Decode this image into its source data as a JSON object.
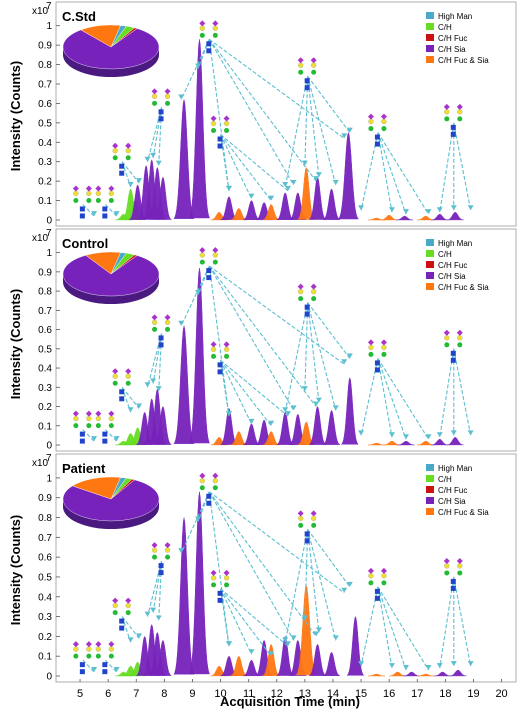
{
  "figure": {
    "y_axis_title": "Intensity (Counts)",
    "x_axis_title": "Acquisition Time (min)",
    "y_multiplier_base": "x10",
    "y_multiplier_exp": "7"
  },
  "colors": {
    "High Man": "#4aa8c8",
    "C/H": "#66dd22",
    "C/H Fuc": "#cc1111",
    "C/H Sia": "#7722bb",
    "C/H Fuc & Sia": "#ff7711",
    "arrow": "#5bbfd0"
  },
  "legend": [
    "High Man",
    "C/H",
    "C/H Fuc",
    "C/H Sia",
    "C/H Fuc & Sia"
  ],
  "chart_data": [
    {
      "type": "area",
      "title": "C.Std",
      "xlabel": "Acquisition Time (min)",
      "ylabel": "Intensity (Counts)",
      "xlim": [
        4.5,
        20.3
      ],
      "ylim": [
        0,
        1.05
      ],
      "y_unit_multiplier": "x10^7",
      "x_ticks": [],
      "y_ticks": [
        0,
        0.1,
        0.2,
        0.3,
        0.4,
        0.5,
        0.6,
        0.7,
        0.8,
        0.9,
        1
      ],
      "peaks": [
        {
          "rt": 6.55,
          "height": 0.03,
          "class": "C/H"
        },
        {
          "rt": 6.8,
          "height": 0.16,
          "class": "C/H"
        },
        {
          "rt": 6.95,
          "height": 0.1,
          "class": "C/H"
        },
        {
          "rt": 7.05,
          "height": 0.18,
          "class": "C/H Sia"
        },
        {
          "rt": 7.35,
          "height": 0.28,
          "class": "C/H Sia"
        },
        {
          "rt": 7.55,
          "height": 0.31,
          "class": "C/H Sia"
        },
        {
          "rt": 7.75,
          "height": 0.27,
          "class": "C/H Sia"
        },
        {
          "rt": 7.95,
          "height": 0.22,
          "class": "C/H Sia"
        },
        {
          "rt": 8.7,
          "height": 0.62,
          "class": "C/H Sia"
        },
        {
          "rt": 9.25,
          "height": 0.93,
          "class": "C/H Sia"
        },
        {
          "rt": 9.95,
          "height": 0.04,
          "class": "C/H Fuc & Sia"
        },
        {
          "rt": 10.3,
          "height": 0.12,
          "class": "C/H Sia"
        },
        {
          "rt": 10.65,
          "height": 0.06,
          "class": "C/H Fuc & Sia"
        },
        {
          "rt": 11.1,
          "height": 0.1,
          "class": "C/H Sia"
        },
        {
          "rt": 11.55,
          "height": 0.09,
          "class": "C/H Sia"
        },
        {
          "rt": 11.8,
          "height": 0.08,
          "class": "C/H Fuc & Sia"
        },
        {
          "rt": 12.3,
          "height": 0.14,
          "class": "C/H Sia"
        },
        {
          "rt": 12.75,
          "height": 0.14,
          "class": "C/H Sia"
        },
        {
          "rt": 13.05,
          "height": 0.27,
          "class": "C/H Fuc & Sia"
        },
        {
          "rt": 13.45,
          "height": 0.22,
          "class": "C/H Sia"
        },
        {
          "rt": 13.95,
          "height": 0.16,
          "class": "C/H Sia"
        },
        {
          "rt": 14.55,
          "height": 0.45,
          "class": "C/H Sia"
        },
        {
          "rt": 15.55,
          "height": 0.01,
          "class": "C/H Fuc & Sia"
        },
        {
          "rt": 16.0,
          "height": 0.025,
          "class": "C/H Fuc & Sia"
        },
        {
          "rt": 16.55,
          "height": 0.02,
          "class": "C/H Sia"
        },
        {
          "rt": 17.3,
          "height": 0.02,
          "class": "C/H Fuc & Sia"
        },
        {
          "rt": 17.8,
          "height": 0.03,
          "class": "C/H Sia"
        },
        {
          "rt": 18.35,
          "height": 0.04,
          "class": "C/H Sia"
        }
      ],
      "pie": [
        {
          "class": "High Man",
          "value": 0.02
        },
        {
          "class": "C/H",
          "value": 0.03
        },
        {
          "class": "C/H Fuc",
          "value": 0.01
        },
        {
          "class": "C/H Sia",
          "value": 0.8
        },
        {
          "class": "C/H Fuc & Sia",
          "value": 0.14
        }
      ]
    },
    {
      "type": "area",
      "title": "Control",
      "xlabel": "Acquisition Time (min)",
      "ylabel": "Intensity (Counts)",
      "xlim": [
        4.5,
        20.3
      ],
      "ylim": [
        0,
        1.05
      ],
      "y_unit_multiplier": "x10^7",
      "x_ticks": [],
      "y_ticks": [
        0,
        0.1,
        0.2,
        0.3,
        0.4,
        0.5,
        0.6,
        0.7,
        0.8,
        0.9,
        1
      ],
      "peaks": [
        {
          "rt": 6.55,
          "height": 0.02,
          "class": "C/H"
        },
        {
          "rt": 6.8,
          "height": 0.06,
          "class": "C/H"
        },
        {
          "rt": 7.05,
          "height": 0.09,
          "class": "C/H"
        },
        {
          "rt": 7.3,
          "height": 0.17,
          "class": "C/H Sia"
        },
        {
          "rt": 7.55,
          "height": 0.24,
          "class": "C/H Sia"
        },
        {
          "rt": 7.75,
          "height": 0.29,
          "class": "C/H Sia"
        },
        {
          "rt": 7.95,
          "height": 0.2,
          "class": "C/H Sia"
        },
        {
          "rt": 8.7,
          "height": 0.62,
          "class": "C/H Sia"
        },
        {
          "rt": 9.25,
          "height": 0.92,
          "class": "C/H Sia"
        },
        {
          "rt": 9.95,
          "height": 0.04,
          "class": "C/H Fuc & Sia"
        },
        {
          "rt": 10.3,
          "height": 0.19,
          "class": "C/H Sia"
        },
        {
          "rt": 10.65,
          "height": 0.07,
          "class": "C/H Fuc & Sia"
        },
        {
          "rt": 11.1,
          "height": 0.11,
          "class": "C/H Sia"
        },
        {
          "rt": 11.55,
          "height": 0.13,
          "class": "C/H Sia"
        },
        {
          "rt": 11.8,
          "height": 0.07,
          "class": "C/H Fuc & Sia"
        },
        {
          "rt": 12.3,
          "height": 0.17,
          "class": "C/H Sia"
        },
        {
          "rt": 12.75,
          "height": 0.16,
          "class": "C/H Sia"
        },
        {
          "rt": 13.05,
          "height": 0.12,
          "class": "C/H Fuc & Sia"
        },
        {
          "rt": 13.45,
          "height": 0.2,
          "class": "C/H Sia"
        },
        {
          "rt": 13.95,
          "height": 0.18,
          "class": "C/H Sia"
        },
        {
          "rt": 14.6,
          "height": 0.35,
          "class": "C/H Sia"
        },
        {
          "rt": 15.55,
          "height": 0.01,
          "class": "C/H Fuc & Sia"
        },
        {
          "rt": 16.1,
          "height": 0.02,
          "class": "C/H Fuc & Sia"
        },
        {
          "rt": 16.6,
          "height": 0.02,
          "class": "C/H Sia"
        },
        {
          "rt": 17.3,
          "height": 0.02,
          "class": "C/H Fuc & Sia"
        },
        {
          "rt": 17.8,
          "height": 0.03,
          "class": "C/H Sia"
        },
        {
          "rt": 18.35,
          "height": 0.04,
          "class": "C/H Sia"
        }
      ],
      "pie": [
        {
          "class": "High Man",
          "value": 0.02
        },
        {
          "class": "C/H",
          "value": 0.03
        },
        {
          "class": "C/H Fuc",
          "value": 0.01
        },
        {
          "class": "C/H Sia",
          "value": 0.82
        },
        {
          "class": "C/H Fuc & Sia",
          "value": 0.12
        }
      ]
    },
    {
      "type": "area",
      "title": "Patient",
      "xlabel": "Acquisition Time (min)",
      "ylabel": "Intensity (Counts)",
      "xlim": [
        4.5,
        20.3
      ],
      "ylim": [
        0,
        1.05
      ],
      "y_unit_multiplier": "x10^7",
      "x_ticks": [
        5,
        6,
        7,
        8,
        9,
        10,
        11,
        12,
        13,
        14,
        15,
        16,
        17,
        18,
        19,
        20
      ],
      "y_ticks": [
        0,
        0.1,
        0.2,
        0.3,
        0.4,
        0.5,
        0.6,
        0.7,
        0.8,
        0.9,
        1
      ],
      "peaks": [
        {
          "rt": 6.55,
          "height": 0.02,
          "class": "C/H"
        },
        {
          "rt": 6.8,
          "height": 0.05,
          "class": "C/H"
        },
        {
          "rt": 7.05,
          "height": 0.07,
          "class": "C/H"
        },
        {
          "rt": 7.3,
          "height": 0.2,
          "class": "C/H Sia"
        },
        {
          "rt": 7.55,
          "height": 0.26,
          "class": "C/H Sia"
        },
        {
          "rt": 7.75,
          "height": 0.22,
          "class": "C/H Sia"
        },
        {
          "rt": 7.95,
          "height": 0.18,
          "class": "C/H Sia"
        },
        {
          "rt": 8.7,
          "height": 0.8,
          "class": "C/H Sia"
        },
        {
          "rt": 9.25,
          "height": 0.93,
          "class": "C/H Sia"
        },
        {
          "rt": 9.95,
          "height": 0.05,
          "class": "C/H Fuc & Sia"
        },
        {
          "rt": 10.3,
          "height": 0.1,
          "class": "C/H Sia"
        },
        {
          "rt": 10.65,
          "height": 0.1,
          "class": "C/H Fuc & Sia"
        },
        {
          "rt": 11.1,
          "height": 0.08,
          "class": "C/H Sia"
        },
        {
          "rt": 11.55,
          "height": 0.18,
          "class": "C/H Sia"
        },
        {
          "rt": 11.8,
          "height": 0.16,
          "class": "C/H Fuc & Sia"
        },
        {
          "rt": 12.3,
          "height": 0.2,
          "class": "C/H Sia"
        },
        {
          "rt": 12.75,
          "height": 0.18,
          "class": "C/H Sia"
        },
        {
          "rt": 13.05,
          "height": 0.46,
          "class": "C/H Fuc & Sia"
        },
        {
          "rt": 13.45,
          "height": 0.16,
          "class": "C/H Sia"
        },
        {
          "rt": 13.95,
          "height": 0.12,
          "class": "C/H Sia"
        },
        {
          "rt": 14.8,
          "height": 0.3,
          "class": "C/H Sia"
        },
        {
          "rt": 15.55,
          "height": 0.01,
          "class": "C/H Fuc & Sia"
        },
        {
          "rt": 16.3,
          "height": 0.02,
          "class": "C/H Fuc & Sia"
        },
        {
          "rt": 16.8,
          "height": 0.02,
          "class": "C/H Sia"
        },
        {
          "rt": 17.3,
          "height": 0.01,
          "class": "C/H Fuc & Sia"
        },
        {
          "rt": 17.9,
          "height": 0.02,
          "class": "C/H Sia"
        },
        {
          "rt": 18.45,
          "height": 0.03,
          "class": "C/H Sia"
        }
      ],
      "pie": [
        {
          "class": "High Man",
          "value": 0.02
        },
        {
          "class": "C/H",
          "value": 0.02
        },
        {
          "class": "C/H Fuc",
          "value": 0.01
        },
        {
          "class": "C/H Sia",
          "value": 0.77
        },
        {
          "class": "C/H Fuc & Sia",
          "value": 0.18
        }
      ]
    }
  ]
}
